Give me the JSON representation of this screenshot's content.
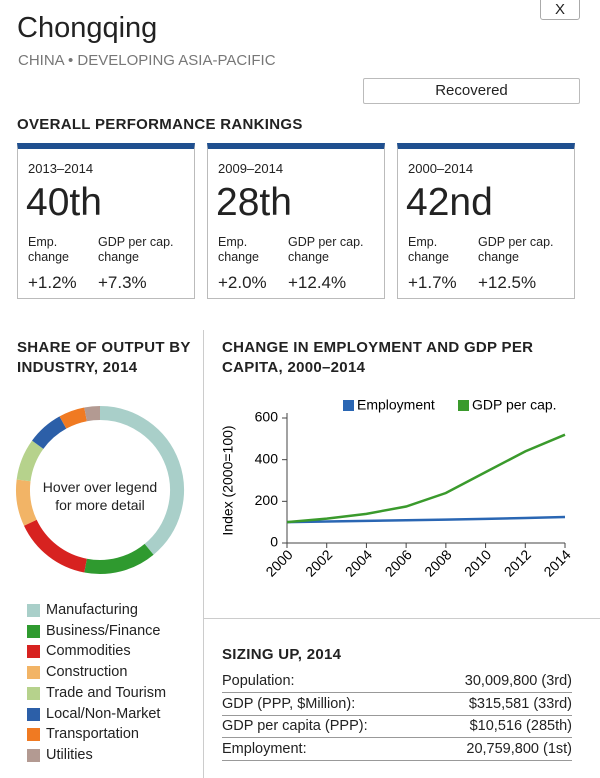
{
  "close_button": "X",
  "header": {
    "title": "Chongqing",
    "subtitle": "CHINA • DEVELOPING ASIA-PACIFIC",
    "status": "Recovered"
  },
  "rankings": {
    "title": "OVERALL PERFORMANCE RANKINGS",
    "cards": [
      {
        "period": "2013–2014",
        "rank": "40th",
        "emp_label": "Emp. change",
        "gdp_label": "GDP per cap. change",
        "emp": "+1.2%",
        "gdp": "+7.3%"
      },
      {
        "period": "2009–2014",
        "rank": "28th",
        "emp_label": "Emp. change",
        "gdp_label": "GDP per cap. change",
        "emp": "+2.0%",
        "gdp": "+12.4%"
      },
      {
        "period": "2000–2014",
        "rank": "42nd",
        "emp_label": "Emp. change",
        "gdp_label": "GDP per cap. change",
        "emp": "+1.7%",
        "gdp": "+12.5%"
      }
    ]
  },
  "chart_data": [
    {
      "type": "pie",
      "title": "SHARE OF OUTPUT BY INDUSTRY, 2014",
      "center_text": "Hover over legend for more detail",
      "categories": [
        "Manufacturing",
        "Business/Finance",
        "Commodities",
        "Construction",
        "Trade and Tourism",
        "Local/Non-Market",
        "Transportation",
        "Utilities"
      ],
      "values": [
        39,
        14,
        15,
        9,
        8,
        7,
        5,
        3
      ],
      "colors": [
        "#a9cfc9",
        "#2f9a2f",
        "#d72220",
        "#f2b466",
        "#b6d28c",
        "#2c5fa8",
        "#f07a22",
        "#b39a92"
      ]
    },
    {
      "type": "line",
      "title": "CHANGE IN EMPLOYMENT AND GDP PER CAPITA, 2000–2014",
      "ylabel": "Index (2000=100)",
      "x": [
        2000,
        2002,
        2004,
        2006,
        2008,
        2010,
        2012,
        2014
      ],
      "series": [
        {
          "name": "Employment",
          "color": "#2a66b3",
          "values": [
            100,
            103,
            106,
            109,
            112,
            116,
            120,
            125
          ]
        },
        {
          "name": "GDP per cap.",
          "color": "#3a9a2c",
          "values": [
            100,
            117,
            140,
            175,
            240,
            340,
            440,
            520
          ]
        }
      ],
      "xlim": [
        2000,
        2014
      ],
      "xticks": [
        2000,
        2002,
        2004,
        2006,
        2008,
        2010,
        2012,
        2014
      ],
      "ylim": [
        0,
        600
      ],
      "yticks": [
        0,
        200,
        400,
        600
      ],
      "legend": "top-right"
    }
  ],
  "sizing": {
    "title": "SIZING UP, 2014",
    "rows": [
      [
        "Population:",
        "30,009,800 (3rd)"
      ],
      [
        "GDP (PPP, $Million):",
        "$315,581 (33rd)"
      ],
      [
        "GDP per capita (PPP):",
        "$10,516 (285th)"
      ],
      [
        "Employment:",
        "20,759,800 (1st)"
      ]
    ]
  }
}
